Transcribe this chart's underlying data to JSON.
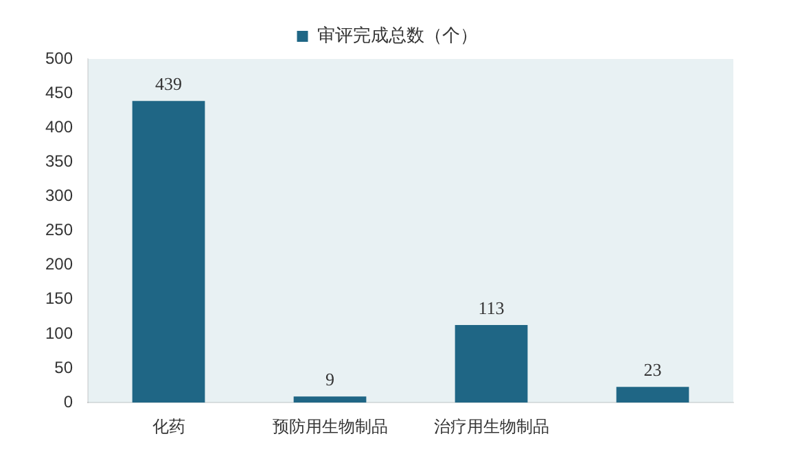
{
  "chart_data": {
    "type": "bar",
    "categories": [
      "化药",
      "预防用生物制品",
      "治疗用生物制品",
      null
    ],
    "series": [
      {
        "name": "审评完成总数（个）",
        "color": "#1f6685",
        "values": [
          439,
          9,
          113,
          23
        ]
      }
    ],
    "ylim": [
      0,
      500
    ],
    "yticks": [
      0,
      50,
      100,
      150,
      200,
      250,
      300,
      350,
      400,
      450,
      500
    ],
    "data_labels": true,
    "legend": "top",
    "grid": false
  }
}
